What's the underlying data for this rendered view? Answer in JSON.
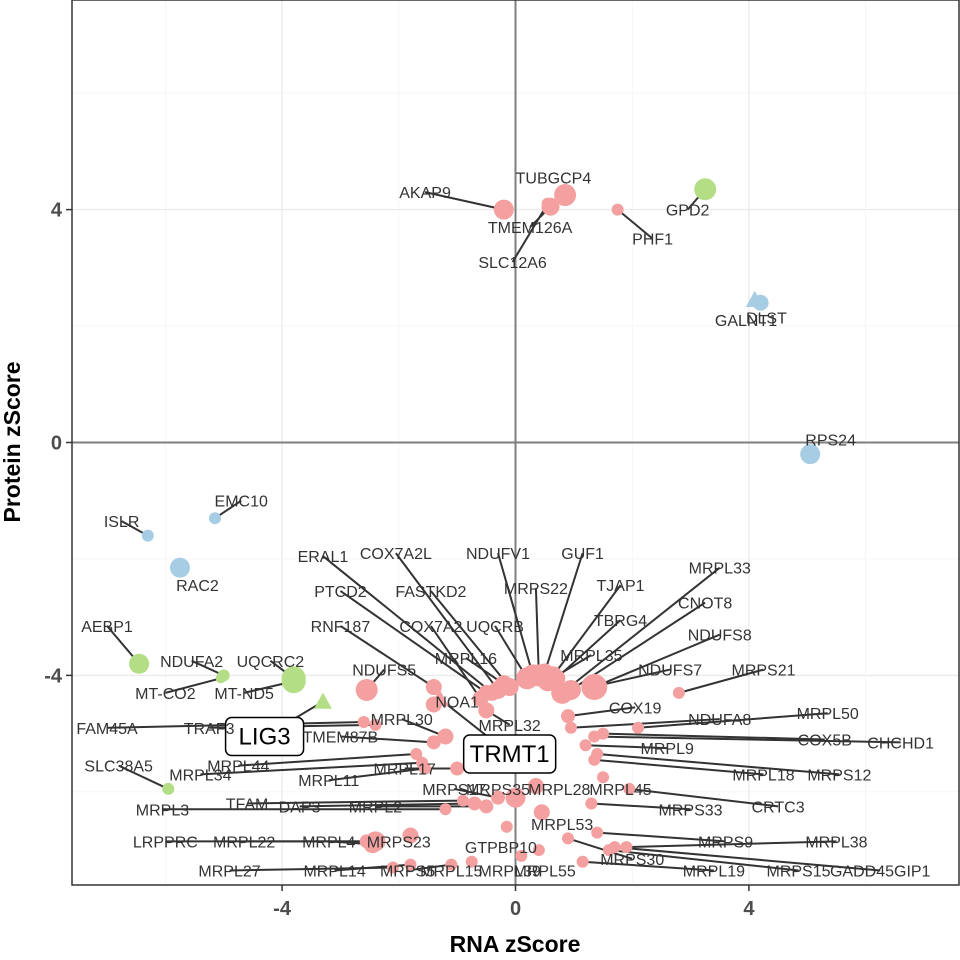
{
  "chart_data": {
    "type": "scatter",
    "xlabel": "RNA zScore",
    "ylabel": "Protein zScore",
    "xlim": [
      -7.6,
      7.6
    ],
    "ylim": [
      -7.6,
      7.6
    ],
    "x_ticks": [
      -4,
      0,
      4
    ],
    "y_ticks": [
      -4,
      0,
      4
    ],
    "grid": true,
    "zero_lines": true,
    "colors": {
      "red": "#f4a0a0",
      "green": "#b3de85",
      "blue": "#a6cde3"
    },
    "points": [
      {
        "label": "AKAP9",
        "x": -0.2,
        "y": 4.0,
        "color": "red",
        "size": 10,
        "label_x": -1.55,
        "label_y": 4.3
      },
      {
        "label": "TUBGCP4",
        "x": 0.85,
        "y": 4.25,
        "color": "red",
        "size": 11,
        "label_x": 0.65,
        "label_y": 4.55
      },
      {
        "label": "TMEM126A",
        "x": 0.6,
        "y": 4.05,
        "color": "red",
        "size": 9,
        "label_x": 0.25,
        "label_y": 3.7
      },
      {
        "label": "SLC12A6",
        "x": 0.55,
        "y": 4.1,
        "color": "red",
        "size": 6,
        "label_x": -0.05,
        "label_y": 3.1
      },
      {
        "label": "PHF1",
        "x": 1.75,
        "y": 4.0,
        "color": "red",
        "size": 6,
        "label_x": 2.35,
        "label_y": 3.5
      },
      {
        "label": "GPD2",
        "x": 3.25,
        "y": 4.35,
        "color": "green",
        "size": 11,
        "label_x": 2.95,
        "label_y": 4.0
      },
      {
        "label": "DLST",
        "x": 4.2,
        "y": 2.4,
        "color": "blue",
        "size": 8,
        "label_x": 4.3,
        "label_y": 2.15
      },
      {
        "label": "GALNT1",
        "x": 4.1,
        "y": 2.45,
        "color": "blue",
        "size": 9,
        "shape": "triangle",
        "label_x": 3.95,
        "label_y": 2.1
      },
      {
        "label": "RPS24",
        "x": 5.05,
        "y": -0.2,
        "color": "blue",
        "size": 10,
        "label_x": 5.4,
        "label_y": 0.05
      },
      {
        "label": "ISLR",
        "x": -6.3,
        "y": -1.6,
        "color": "blue",
        "size": 6,
        "label_x": -6.75,
        "label_y": -1.35
      },
      {
        "label": "EMC10",
        "x": -5.15,
        "y": -1.3,
        "color": "blue",
        "size": 6,
        "label_x": -4.7,
        "label_y": -1.0
      },
      {
        "label": "RAC2",
        "x": -5.75,
        "y": -2.15,
        "color": "blue",
        "size": 10,
        "label_x": -5.45,
        "label_y": -2.45
      },
      {
        "label": "AEBP1",
        "x": -6.45,
        "y": -3.8,
        "color": "green",
        "size": 10,
        "label_x": -7.0,
        "label_y": -3.15
      },
      {
        "label": "NDUFA2",
        "x": -5.0,
        "y": -4.0,
        "color": "green",
        "size": 6,
        "label_x": -5.55,
        "label_y": -3.75
      },
      {
        "label": "MT-CO2",
        "x": -5.05,
        "y": -4.05,
        "color": "green",
        "size": 5,
        "label_x": -6.0,
        "label_y": -4.3
      },
      {
        "label": "MT-ND5",
        "x": -3.8,
        "y": -4.1,
        "color": "green",
        "size": 12,
        "label_x": -4.65,
        "label_y": -4.3
      },
      {
        "label": "UQCRC2",
        "x": -3.8,
        "y": -4.05,
        "color": "green",
        "size": 12,
        "label_x": -4.2,
        "label_y": -3.75
      },
      {
        "label": "SLC38A5",
        "x": -5.95,
        "y": -5.95,
        "color": "green",
        "size": 6,
        "label_x": -6.8,
        "label_y": -5.55
      },
      {
        "label": "LIG3",
        "x": -3.3,
        "y": -4.45,
        "color": "green",
        "size": 9,
        "shape": "triangle",
        "boxed": true,
        "label_x": -4.3,
        "label_y": -5.05
      },
      {
        "label": "TRMT1",
        "x": -1.3,
        "y": -4.4,
        "color": "red",
        "size": 9,
        "shape": "triangle",
        "boxed": true,
        "label_x": -0.1,
        "label_y": -5.35
      },
      {
        "label": "FAM45A",
        "x": -2.6,
        "y": -4.8,
        "color": "red",
        "size": 6,
        "label_x": -7.0,
        "label_y": -4.9
      },
      {
        "label": "TRAF3",
        "x": -2.4,
        "y": -4.85,
        "color": "red",
        "size": 6,
        "label_x": -5.25,
        "label_y": -4.9
      },
      {
        "label": "MRPL34",
        "x": -1.6,
        "y": -5.5,
        "color": "red",
        "size": 6,
        "label_x": -5.4,
        "label_y": -5.7
      },
      {
        "label": "MRPL44",
        "x": -1.7,
        "y": -5.35,
        "color": "red",
        "size": 6,
        "label_x": -4.75,
        "label_y": -5.55
      },
      {
        "label": "TMEM87B",
        "x": -1.4,
        "y": -5.15,
        "color": "red",
        "size": 7,
        "label_x": -3.0,
        "label_y": -5.05
      },
      {
        "label": "MRPL30",
        "x": -1.2,
        "y": -5.05,
        "color": "red",
        "size": 8,
        "label_x": -1.95,
        "label_y": -4.75
      },
      {
        "label": "MRPL11",
        "x": -1.55,
        "y": -5.6,
        "color": "red",
        "size": 6,
        "label_x": -3.2,
        "label_y": -5.8
      },
      {
        "label": "MRPL17",
        "x": -1.0,
        "y": -5.6,
        "color": "red",
        "size": 7,
        "label_x": -1.9,
        "label_y": -5.6
      },
      {
        "label": "MRPL3",
        "x": -1.2,
        "y": -6.3,
        "color": "red",
        "size": 6,
        "label_x": -6.05,
        "label_y": -6.3
      },
      {
        "label": "TFAM",
        "x": -0.9,
        "y": -6.15,
        "color": "red",
        "size": 6,
        "label_x": -4.6,
        "label_y": -6.2
      },
      {
        "label": "DAP3",
        "x": -0.7,
        "y": -6.2,
        "color": "red",
        "size": 7,
        "label_x": -3.7,
        "label_y": -6.25
      },
      {
        "label": "MRPL2",
        "x": -0.5,
        "y": -6.25,
        "color": "red",
        "size": 7,
        "label_x": -2.4,
        "label_y": -6.25
      },
      {
        "label": "LRPPRC",
        "x": -2.4,
        "y": -6.85,
        "color": "red",
        "size": 10,
        "label_x": -6.0,
        "label_y": -6.85
      },
      {
        "label": "MRPL22",
        "x": -2.55,
        "y": -6.85,
        "color": "red",
        "size": 7,
        "label_x": -4.65,
        "label_y": -6.85
      },
      {
        "label": "MRPL4",
        "x": -2.45,
        "y": -6.9,
        "color": "red",
        "size": 9,
        "label_x": -3.2,
        "label_y": -6.85
      },
      {
        "label": "MRPS23",
        "x": -1.8,
        "y": -6.75,
        "color": "red",
        "size": 8,
        "label_x": -2.0,
        "label_y": -6.85
      },
      {
        "label": "MRPL27",
        "x": -2.1,
        "y": -7.3,
        "color": "red",
        "size": 6,
        "label_x": -4.9,
        "label_y": -7.35
      },
      {
        "label": "MRPL14",
        "x": -1.8,
        "y": -7.25,
        "color": "red",
        "size": 6,
        "label_x": -3.1,
        "label_y": -7.35
      },
      {
        "label": "MRPS5",
        "x": -1.1,
        "y": -7.25,
        "color": "red",
        "size": 6,
        "label_x": -1.85,
        "label_y": -7.35
      },
      {
        "label": "MRPL15",
        "x": -0.75,
        "y": -7.2,
        "color": "red",
        "size": 6,
        "label_x": -1.1,
        "label_y": -7.35
      },
      {
        "label": "MRPL39",
        "x": 0.1,
        "y": -7.1,
        "color": "red",
        "size": 6,
        "label_x": -0.1,
        "label_y": -7.35
      },
      {
        "label": "MRPL55",
        "x": 0.4,
        "y": -7.0,
        "color": "red",
        "size": 6,
        "label_x": 0.5,
        "label_y": -7.35
      },
      {
        "label": "GTPBP10",
        "x": -0.15,
        "y": -6.6,
        "color": "red",
        "size": 6,
        "label_x": -0.25,
        "label_y": -6.95
      },
      {
        "label": "MRPL53",
        "x": 0.45,
        "y": -6.35,
        "color": "red",
        "size": 8,
        "label_x": 0.8,
        "label_y": -6.55
      },
      {
        "label": "MRPS35",
        "x": 0.0,
        "y": -6.1,
        "color": "red",
        "size": 10,
        "label_x": -0.3,
        "label_y": -5.95
      },
      {
        "label": "MRPS17",
        "x": -0.3,
        "y": -6.1,
        "color": "red",
        "size": 7,
        "label_x": -1.05,
        "label_y": -5.95
      },
      {
        "label": "MRPL28",
        "x": 0.35,
        "y": -5.9,
        "color": "red",
        "size": 8,
        "label_x": 0.75,
        "label_y": -5.95
      },
      {
        "label": "MRPL45",
        "x": 1.5,
        "y": -5.75,
        "color": "red",
        "size": 6,
        "label_x": 1.8,
        "label_y": -5.95
      },
      {
        "label": "MRPS33",
        "x": 1.3,
        "y": -6.2,
        "color": "red",
        "size": 6,
        "label_x": 3.0,
        "label_y": -6.3
      },
      {
        "label": "MRPS9",
        "x": 1.4,
        "y": -6.7,
        "color": "red",
        "size": 6,
        "label_x": 3.6,
        "label_y": -6.85
      },
      {
        "label": "MRPL38",
        "x": 1.9,
        "y": -6.95,
        "color": "red",
        "size": 6,
        "label_x": 5.5,
        "label_y": -6.85
      },
      {
        "label": "MRPS30",
        "x": 0.9,
        "y": -6.8,
        "color": "red",
        "size": 6,
        "label_x": 2.0,
        "label_y": -7.15
      },
      {
        "label": "MRPL19",
        "x": 1.15,
        "y": -7.2,
        "color": "red",
        "size": 6,
        "label_x": 3.4,
        "label_y": -7.35
      },
      {
        "label": "MRPS15",
        "x": 1.6,
        "y": -7.0,
        "color": "red",
        "size": 6,
        "label_x": 4.85,
        "label_y": -7.35
      },
      {
        "label": "GADD45GIP1",
        "x": 1.7,
        "y": -6.95,
        "color": "red",
        "size": 6,
        "label_x": 6.25,
        "label_y": -7.35
      },
      {
        "label": "CRTC3",
        "x": 1.95,
        "y": -5.95,
        "color": "red",
        "size": 6,
        "label_x": 4.5,
        "label_y": -6.25
      },
      {
        "label": "MRPL18",
        "x": 1.35,
        "y": -5.45,
        "color": "red",
        "size": 6,
        "label_x": 4.25,
        "label_y": -5.7
      },
      {
        "label": "MRPS12",
        "x": 1.4,
        "y": -5.35,
        "color": "red",
        "size": 6,
        "label_x": 5.55,
        "label_y": -5.7
      },
      {
        "label": "MRPL9",
        "x": 1.2,
        "y": -5.2,
        "color": "red",
        "size": 6,
        "label_x": 2.6,
        "label_y": -5.25
      },
      {
        "label": "CHCHD1",
        "x": 1.35,
        "y": -5.05,
        "color": "red",
        "size": 6,
        "label_x": 6.6,
        "label_y": -5.15
      },
      {
        "label": "COX5B",
        "x": 1.5,
        "y": -5.0,
        "color": "red",
        "size": 6,
        "label_x": 5.3,
        "label_y": -5.1
      },
      {
        "label": "MRPL50",
        "x": 2.1,
        "y": -4.9,
        "color": "red",
        "size": 6,
        "label_x": 5.35,
        "label_y": -4.65
      },
      {
        "label": "NDUFA8",
        "x": 0.95,
        "y": -4.9,
        "color": "red",
        "size": 6,
        "label_x": 3.5,
        "label_y": -4.75
      },
      {
        "label": "COX19",
        "x": 0.9,
        "y": -4.7,
        "color": "red",
        "size": 7,
        "label_x": 2.05,
        "label_y": -4.55
      },
      {
        "label": "MRPS21",
        "x": 2.8,
        "y": -4.3,
        "color": "red",
        "size": 6,
        "label_x": 4.25,
        "label_y": -3.9
      },
      {
        "label": "NDUFS7",
        "x": 1.3,
        "y": -4.2,
        "color": "red",
        "size": 10,
        "label_x": 2.65,
        "label_y": -3.9
      },
      {
        "label": "NDUFS8",
        "x": 1.35,
        "y": -4.2,
        "color": "red",
        "size": 13,
        "label_x": 3.5,
        "label_y": -3.3
      },
      {
        "label": "CNOT8",
        "x": 0.95,
        "y": -4.25,
        "color": "red",
        "size": 10,
        "label_x": 3.25,
        "label_y": -2.75
      },
      {
        "label": "MRPL33",
        "x": 0.8,
        "y": -4.3,
        "color": "red",
        "size": 11,
        "label_x": 3.5,
        "label_y": -2.15
      },
      {
        "label": "TBRG4",
        "x": 0.7,
        "y": -4.05,
        "color": "red",
        "size": 9,
        "label_x": 1.8,
        "label_y": -3.05
      },
      {
        "label": "TJAP1",
        "x": 0.65,
        "y": -4.0,
        "color": "red",
        "size": 9,
        "label_x": 1.8,
        "label_y": -2.45
      },
      {
        "label": "GUF1",
        "x": 0.5,
        "y": -3.95,
        "color": "red",
        "size": 9,
        "label_x": 1.15,
        "label_y": -1.9
      },
      {
        "label": "MRPL35",
        "x": 0.55,
        "y": -4.1,
        "color": "red",
        "size": 10,
        "label_x": 1.3,
        "label_y": -3.65
      },
      {
        "label": "MRPS22",
        "x": 0.4,
        "y": -4.0,
        "color": "red",
        "size": 11,
        "label_x": 0.35,
        "label_y": -2.5
      },
      {
        "label": "NDUFV1",
        "x": 0.3,
        "y": -4.0,
        "color": "red",
        "size": 11,
        "label_x": -0.3,
        "label_y": -1.9
      },
      {
        "label": "UQCRB",
        "x": 0.2,
        "y": -4.05,
        "color": "red",
        "size": 11,
        "label_x": -0.35,
        "label_y": -3.15
      },
      {
        "label": "MRPL16",
        "x": -0.2,
        "y": -4.15,
        "color": "red",
        "size": 9,
        "label_x": -0.85,
        "label_y": -3.7
      },
      {
        "label": "FASTKD2",
        "x": -0.1,
        "y": -4.2,
        "color": "red",
        "size": 9,
        "label_x": -1.45,
        "label_y": -2.55
      },
      {
        "label": "COX7A2L",
        "x": -0.3,
        "y": -4.25,
        "color": "red",
        "size": 9,
        "label_x": -2.05,
        "label_y": -1.9
      },
      {
        "label": "ERAL1",
        "x": -0.4,
        "y": -4.3,
        "color": "red",
        "size": 8,
        "label_x": -3.3,
        "label_y": -1.95
      },
      {
        "label": "PTCD2",
        "x": -0.5,
        "y": -4.3,
        "color": "red",
        "size": 8,
        "label_x": -3.0,
        "label_y": -2.55
      },
      {
        "label": "COX7A2",
        "x": -0.6,
        "y": -4.4,
        "color": "red",
        "size": 8,
        "label_x": -1.45,
        "label_y": -3.15
      },
      {
        "label": "RNF187",
        "x": -1.4,
        "y": -4.2,
        "color": "red",
        "size": 8,
        "label_x": -3.0,
        "label_y": -3.15
      },
      {
        "label": "NDUFS5",
        "x": -2.55,
        "y": -4.25,
        "color": "red",
        "size": 11,
        "label_x": -2.25,
        "label_y": -3.9
      },
      {
        "label": "NOA1",
        "x": -1.4,
        "y": -4.5,
        "color": "red",
        "size": 8,
        "label_x": -1.0,
        "label_y": -4.45
      },
      {
        "label": "MRPL32",
        "x": -0.5,
        "y": -4.6,
        "color": "red",
        "size": 8,
        "label_x": -0.1,
        "label_y": -4.85
      }
    ]
  }
}
